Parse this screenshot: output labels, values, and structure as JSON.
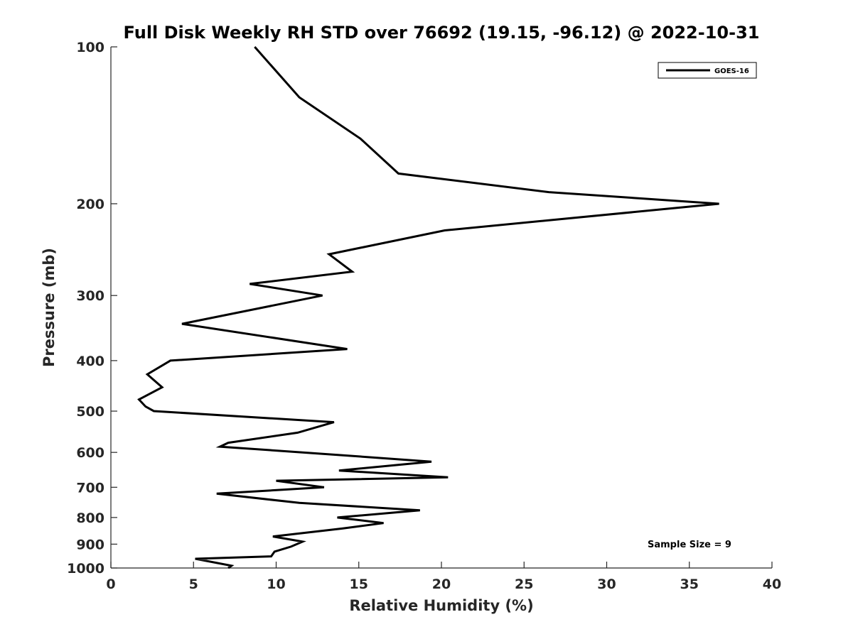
{
  "chart_data": {
    "type": "line",
    "title": "Full Disk Weekly RH STD over 76692 (19.15, -96.12) @ 2022-10-31",
    "xlabel": "Relative Humidity (%)",
    "ylabel": "Pressure (mb)",
    "xlim": [
      0,
      40
    ],
    "ylim": [
      1000,
      100
    ],
    "y_scale": "log",
    "xticks": [
      0,
      5,
      10,
      15,
      20,
      25,
      30,
      35,
      40
    ],
    "yticks": [
      100,
      200,
      300,
      400,
      500,
      600,
      700,
      800,
      900,
      1000
    ],
    "grid": false,
    "legend_position": "top-right",
    "annotation": "Sample Size = 9",
    "series": [
      {
        "name": "GOES-16",
        "color": "#000000",
        "points": [
          [
            8.7,
            100
          ],
          [
            11.4,
            125
          ],
          [
            15.1,
            150
          ],
          [
            17.4,
            175
          ],
          [
            26.5,
            190
          ],
          [
            36.8,
            200
          ],
          [
            20.2,
            225
          ],
          [
            13.2,
            250
          ],
          [
            14.6,
            270
          ],
          [
            8.4,
            285
          ],
          [
            12.8,
            300
          ],
          [
            4.3,
            340
          ],
          [
            14.3,
            380
          ],
          [
            3.6,
            400
          ],
          [
            2.2,
            425
          ],
          [
            3.1,
            450
          ],
          [
            1.7,
            475
          ],
          [
            2.1,
            490
          ],
          [
            2.6,
            500
          ],
          [
            13.5,
            525
          ],
          [
            11.3,
            550
          ],
          [
            7.1,
            575
          ],
          [
            6.6,
            585
          ],
          [
            11.6,
            600
          ],
          [
            19.4,
            625
          ],
          [
            13.8,
            650
          ],
          [
            20.4,
            670
          ],
          [
            10.0,
            680
          ],
          [
            12.9,
            700
          ],
          [
            6.4,
            720
          ],
          [
            11.4,
            750
          ],
          [
            18.7,
            775
          ],
          [
            13.7,
            800
          ],
          [
            16.5,
            820
          ],
          [
            14.0,
            840
          ],
          [
            9.8,
            870
          ],
          [
            11.6,
            890
          ],
          [
            10.9,
            910
          ],
          [
            9.9,
            930
          ],
          [
            9.7,
            950
          ],
          [
            5.1,
            960
          ],
          [
            7.3,
            990
          ],
          [
            7.1,
            1000
          ]
        ]
      }
    ]
  }
}
